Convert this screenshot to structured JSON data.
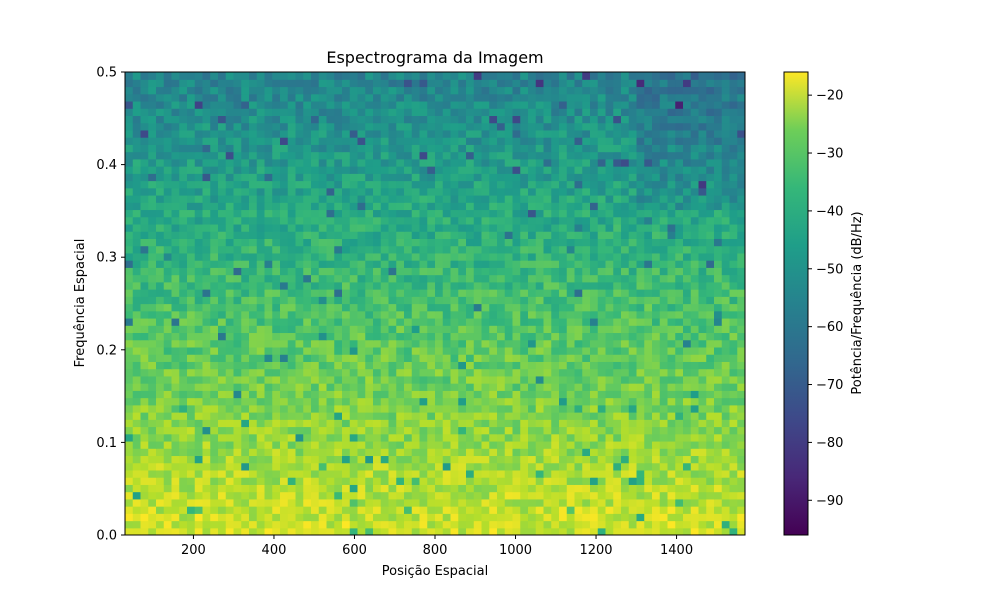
{
  "chart_data": {
    "type": "heatmap",
    "title": "Espectrograma da Imagem",
    "xlabel": "Posição Espacial",
    "ylabel": "Frequência Espacial",
    "colorbar_label": "Potência/Frequência (dB/Hz)",
    "colormap": "viridis",
    "xlim": [
      30,
      1570
    ],
    "ylim": [
      0,
      0.5
    ],
    "clim": [
      -96,
      -16
    ],
    "x_ticks": [
      200,
      400,
      600,
      800,
      1000,
      1200,
      1400
    ],
    "x_tick_labels": [
      "200",
      "400",
      "600",
      "800",
      "1000",
      "1200",
      "1400"
    ],
    "y_ticks": [
      0.0,
      0.1,
      0.2,
      0.3,
      0.4,
      0.5
    ],
    "y_tick_labels": [
      "0.0",
      "0.1",
      "0.2",
      "0.3",
      "0.4",
      "0.5"
    ],
    "colorbar_ticks": [
      -20,
      -30,
      -40,
      -50,
      -60,
      -70,
      -80,
      -90
    ],
    "colorbar_tick_labels": [
      "−20",
      "−30",
      "−40",
      "−50",
      "−60",
      "−70",
      "−80",
      "−90"
    ],
    "grid": false,
    "power_db_trend": {
      "frequencies": [
        0.0,
        0.05,
        0.1,
        0.15,
        0.2,
        0.25,
        0.3,
        0.35,
        0.4,
        0.45,
        0.5
      ],
      "approx_mean_db": [
        -22,
        -25,
        -29,
        -33,
        -36,
        -40,
        -44,
        -48,
        -52,
        -56,
        -60
      ]
    }
  }
}
